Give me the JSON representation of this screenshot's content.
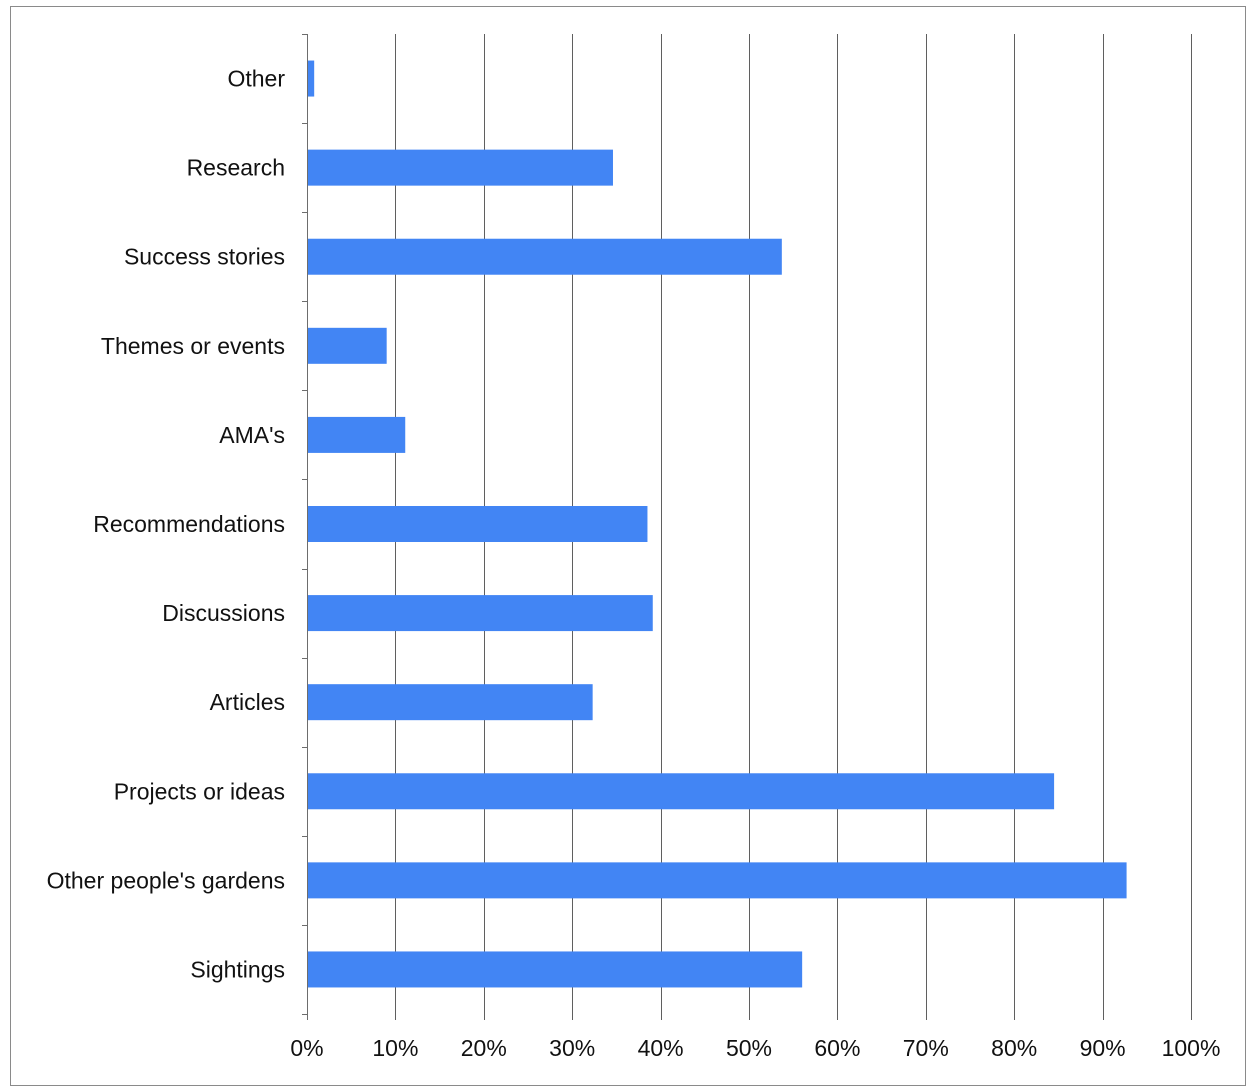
{
  "chart_data": {
    "type": "bar",
    "orientation": "horizontal",
    "categories": [
      "Other",
      "Research",
      "Success stories",
      "Themes  or events",
      "AMA's",
      "Recommendations",
      "Discussions",
      "Articles",
      "Projects or ideas",
      "Other people's gardens",
      "Sightings"
    ],
    "values": [
      0.7,
      34.5,
      53.6,
      8.9,
      11.0,
      38.4,
      39.0,
      32.2,
      84.4,
      92.6,
      55.9
    ],
    "title": "",
    "xlabel": "",
    "ylabel": "",
    "xlim": [
      0,
      100
    ],
    "x_ticks": [
      "0%",
      "10%",
      "20%",
      "30%",
      "40%",
      "50%",
      "60%",
      "70%",
      "80%",
      "90%",
      "100%"
    ],
    "grid": "vertical",
    "legend": "none",
    "bar_color": "#4285f4"
  }
}
